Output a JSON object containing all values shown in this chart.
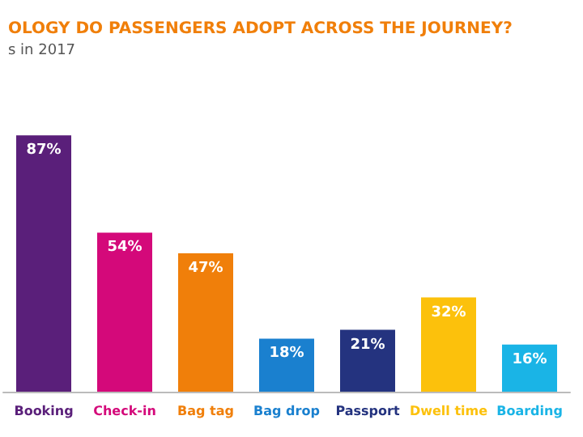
{
  "chart_data": {
    "type": "bar",
    "title": "OLOGY DO PASSENGERS ADOPT ACROSS THE JOURNEY?",
    "subtitle": "s in 2017",
    "categories": [
      "Booking",
      "Check-in",
      "Bag tag",
      "Bag drop",
      "Passport",
      "Dwell time",
      "Boarding"
    ],
    "values": [
      87,
      54,
      47,
      18,
      21,
      32,
      16
    ],
    "colors": [
      "#5a1f7a",
      "#d4097a",
      "#f07f0a",
      "#1a80cf",
      "#24337f",
      "#fcc10c",
      "#1ab4e6"
    ],
    "value_labels": [
      "87%",
      "54%",
      "47%",
      "18%",
      "21%",
      "32%",
      "16%"
    ]
  }
}
